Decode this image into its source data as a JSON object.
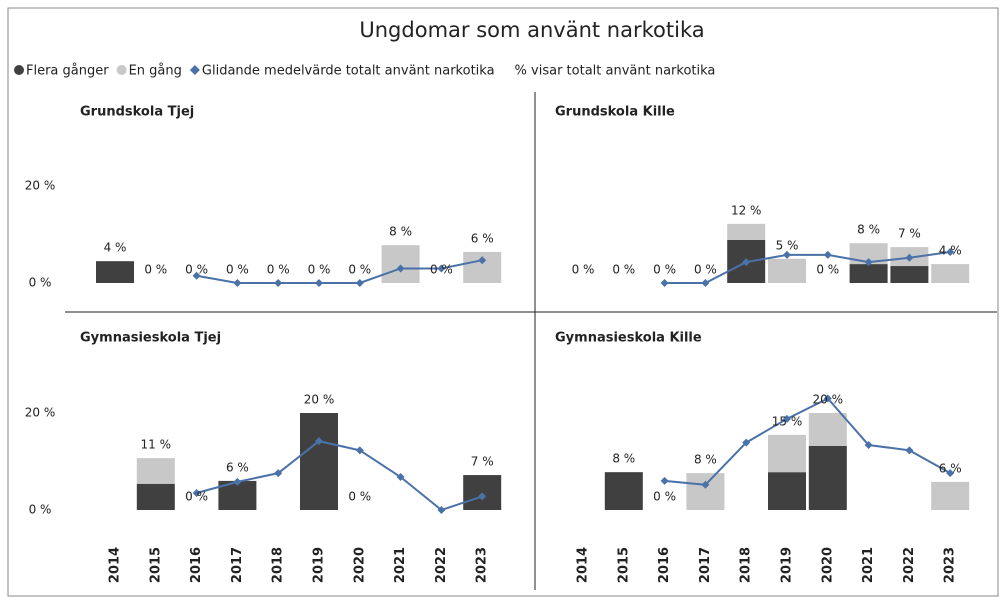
{
  "title": "Ungdomar som använt narkotika",
  "note": "% visar totalt använt narkotika",
  "chart_data": [
    {
      "type": "bar",
      "title": "Grundskola Tjej",
      "ylim": [
        -5,
        38
      ],
      "yticks": [
        {
          "value": 0,
          "label": "0 %"
        },
        {
          "value": 20,
          "label": "20 %"
        }
      ],
      "series": [
        {
          "name": "Flera gånger",
          "color": "#404040",
          "values": [
            4.5,
            null,
            null,
            null,
            null,
            null,
            null,
            null,
            null,
            null
          ]
        },
        {
          "name": "En gång",
          "color": "#c8c8c8",
          "values": [
            null,
            null,
            null,
            null,
            null,
            null,
            null,
            7.8,
            null,
            6.4
          ]
        },
        {
          "name": "Glidande medelvärde totalt använt narkotika",
          "color": "#4a72a8",
          "type": "line",
          "values": [
            null,
            null,
            1.5,
            0,
            0,
            0,
            0,
            3,
            3,
            4.7
          ]
        }
      ],
      "totals": [
        4,
        0,
        0,
        0,
        0,
        0,
        0,
        8,
        0,
        6
      ],
      "total_labels": [
        "4 %",
        "0 %",
        "0 %",
        "0 %",
        "0 %",
        "0 %",
        "0 %",
        "8 %",
        "0 %",
        "6 %"
      ]
    },
    {
      "type": "bar",
      "title": "Grundskola Kille",
      "ylim": [
        -5,
        38
      ],
      "series": [
        {
          "values": [
            null,
            null,
            null,
            null,
            8.9,
            null,
            null,
            3.9,
            3.5,
            null
          ]
        },
        {
          "values": [
            null,
            null,
            null,
            null,
            3.3,
            5,
            null,
            4.3,
            3.9,
            3.9
          ]
        },
        {
          "type": "line",
          "values": [
            null,
            null,
            0,
            0,
            4.3,
            5.8,
            5.8,
            4.3,
            5.2,
            6.4
          ]
        }
      ],
      "totals": [
        0,
        0,
        0,
        0,
        12,
        5,
        0,
        8,
        7,
        4
      ],
      "total_labels": [
        "0 %",
        "0 %",
        "0 %",
        "0 %",
        "12 %",
        "5 %",
        "0 %",
        "8 %",
        "7 %",
        "4 %"
      ]
    },
    {
      "type": "bar",
      "title": "Gymnasieskola Tjej",
      "ylim": [
        -5,
        38
      ],
      "yticks": [
        {
          "value": 0,
          "label": "0 %"
        },
        {
          "value": 20,
          "label": "20 %"
        }
      ],
      "categories": [
        "2014",
        "2015",
        "2016",
        "2017",
        "2018",
        "2019",
        "2020",
        "2021",
        "2022",
        "2023"
      ],
      "series": [
        {
          "values": [
            null,
            5.4,
            null,
            6,
            null,
            20,
            null,
            null,
            null,
            7.2
          ]
        },
        {
          "values": [
            null,
            5.3,
            null,
            null,
            null,
            null,
            null,
            null,
            null,
            null
          ]
        },
        {
          "type": "line",
          "values": [
            null,
            null,
            3.5,
            5.8,
            7.6,
            14.2,
            12.3,
            6.8,
            0,
            2.8
          ]
        }
      ],
      "totals": [
        null,
        11,
        0,
        6,
        null,
        20,
        0,
        null,
        null,
        7
      ],
      "total_labels": [
        null,
        "11 %",
        "0 %",
        "6 %",
        null,
        "20 %",
        "0 %",
        null,
        null,
        "7 %"
      ]
    },
    {
      "type": "bar",
      "title": "Gymnasieskola Kille",
      "ylim": [
        -5,
        38
      ],
      "categories": [
        "2014",
        "2015",
        "2016",
        "2017",
        "2018",
        "2019",
        "2020",
        "2021",
        "2022",
        "2023"
      ],
      "series": [
        {
          "values": [
            null,
            7.8,
            null,
            null,
            null,
            7.8,
            13.2,
            null,
            null,
            null
          ]
        },
        {
          "values": [
            null,
            null,
            null,
            7.6,
            null,
            7.7,
            6.8,
            null,
            null,
            5.8
          ]
        },
        {
          "type": "line",
          "values": [
            null,
            null,
            6,
            5.2,
            13.9,
            18.8,
            23,
            13.4,
            12.3,
            7.6
          ]
        }
      ],
      "totals": [
        null,
        8,
        0,
        8,
        null,
        15,
        20,
        null,
        null,
        6
      ],
      "total_labels": [
        null,
        "8 %",
        "0 %",
        "8 %",
        null,
        "15 %",
        "20 %",
        null,
        null,
        "6 %"
      ]
    }
  ]
}
